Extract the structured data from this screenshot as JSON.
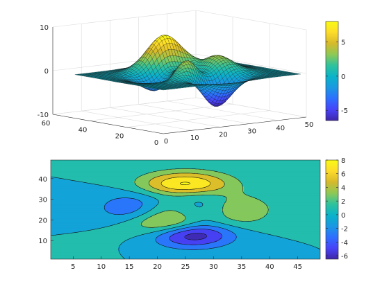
{
  "chart_data": [
    {
      "type": "surface",
      "description_function": "peaks",
      "x_range": [
        0,
        50
      ],
      "y_range": [
        0,
        60
      ],
      "z_range": [
        -10,
        10
      ],
      "x_ticks": [
        "0",
        "10",
        "20",
        "30",
        "40",
        "50"
      ],
      "y_ticks": [
        "0",
        "20",
        "40",
        "60"
      ],
      "z_ticks": [
        "-10",
        "0",
        "10"
      ],
      "colorbar": {
        "range": [
          -6.5,
          8
        ],
        "ticks": [
          "-5",
          "0",
          "5"
        ]
      },
      "grid": true
    },
    {
      "type": "contourf",
      "description_function": "peaks",
      "x_range": [
        1,
        49
      ],
      "y_range": [
        1,
        49
      ],
      "x_ticks": [
        "5",
        "10",
        "15",
        "20",
        "25",
        "30",
        "35",
        "40",
        "45"
      ],
      "y_ticks": [
        "10",
        "20",
        "30",
        "40"
      ],
      "levels": [
        -6,
        -4,
        -2,
        0,
        2,
        4,
        6,
        8
      ],
      "colorbar": {
        "range": [
          -6.5,
          8
        ],
        "ticks": [
          "-6",
          "-4",
          "-2",
          "0",
          "2",
          "4",
          "6",
          "8"
        ]
      }
    }
  ],
  "colormap": {
    "name": "parula",
    "stops": [
      "#3e26a8",
      "#4743f8",
      "#2d6fff",
      "#1a98e2",
      "#0ab3c9",
      "#2fc29c",
      "#8ec956",
      "#d6b92a",
      "#fddb2a",
      "#f9fb15"
    ]
  }
}
